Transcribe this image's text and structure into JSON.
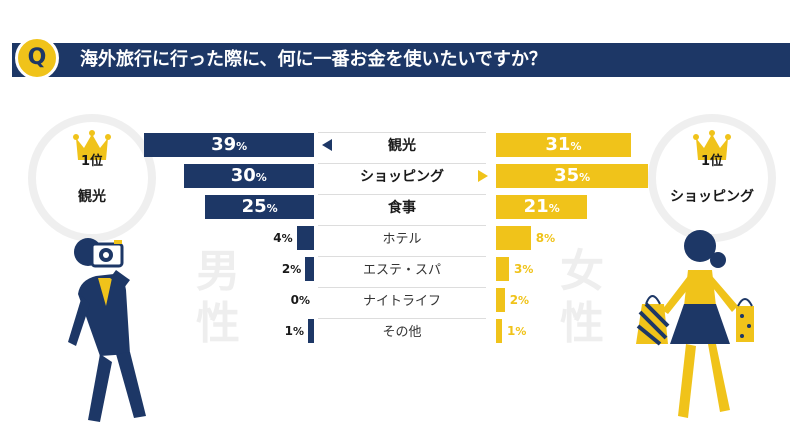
{
  "question": {
    "badge": "Q",
    "text": "海外旅行に行った際に、何に一番お金を使いたいですか？"
  },
  "male": {
    "gender_line1": "男",
    "gender_line2": "性",
    "rank_num": "1位",
    "rank_label": "観光"
  },
  "female": {
    "gender_line1": "女",
    "gender_line2": "性",
    "rank_num": "1位",
    "rank_label": "ショッピング"
  },
  "colors": {
    "male": "#1d3766",
    "female": "#f0c31a"
  },
  "chart_data": {
    "type": "bar",
    "orientation": "horizontal-butterfly",
    "categories": [
      "観光",
      "ショッピング",
      "食事",
      "ホテル",
      "エステ・スパ",
      "ナイトライフ",
      "その他"
    ],
    "unit": "%",
    "series": [
      {
        "name": "男性",
        "values": [
          39,
          30,
          25,
          4,
          2,
          0,
          1
        ]
      },
      {
        "name": "女性",
        "values": [
          31,
          35,
          21,
          8,
          3,
          2,
          1
        ]
      }
    ],
    "top_category": {
      "male": "観光",
      "female": "ショッピング"
    }
  }
}
